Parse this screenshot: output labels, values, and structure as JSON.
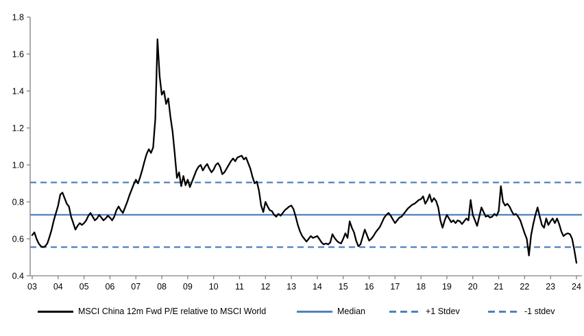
{
  "chart_data": {
    "type": "line",
    "title": "",
    "xlabel": "",
    "ylabel": "",
    "ylim": [
      0.4,
      1.8
    ],
    "y_ticks": [
      0.4,
      0.6,
      0.8,
      1.0,
      1.2,
      1.4,
      1.6,
      1.8
    ],
    "x_tick_labels": [
      "03",
      "04",
      "05",
      "06",
      "07",
      "08",
      "09",
      "10",
      "11",
      "12",
      "13",
      "14",
      "15",
      "16",
      "17",
      "18",
      "19",
      "20",
      "21",
      "22",
      "23",
      "24"
    ],
    "frequency": "monthly",
    "grid": false,
    "legend_position": "bottom",
    "series": [
      {
        "name": "MSCI China 12m Fwd P/E relative to MSCI World",
        "color": "#000000",
        "style": "solid",
        "values": [
          0.62,
          0.635,
          0.6,
          0.575,
          0.56,
          0.555,
          0.56,
          0.575,
          0.61,
          0.65,
          0.7,
          0.74,
          0.78,
          0.84,
          0.85,
          0.82,
          0.79,
          0.775,
          0.72,
          0.685,
          0.65,
          0.67,
          0.685,
          0.675,
          0.685,
          0.7,
          0.725,
          0.74,
          0.72,
          0.7,
          0.71,
          0.73,
          0.715,
          0.7,
          0.71,
          0.725,
          0.715,
          0.7,
          0.72,
          0.755,
          0.775,
          0.755,
          0.74,
          0.77,
          0.8,
          0.835,
          0.865,
          0.895,
          0.92,
          0.9,
          0.935,
          0.975,
          1.02,
          1.06,
          1.085,
          1.065,
          1.095,
          1.25,
          1.68,
          1.48,
          1.38,
          1.4,
          1.33,
          1.36,
          1.26,
          1.18,
          1.06,
          0.93,
          0.96,
          0.885,
          0.94,
          0.89,
          0.92,
          0.88,
          0.91,
          0.94,
          0.97,
          0.99,
          1.0,
          0.97,
          0.99,
          1.005,
          0.98,
          0.96,
          0.975,
          1.0,
          1.01,
          0.99,
          0.95,
          0.96,
          0.98,
          1.0,
          1.02,
          1.035,
          1.02,
          1.04,
          1.045,
          1.05,
          1.03,
          1.04,
          1.01,
          0.98,
          0.935,
          0.9,
          0.91,
          0.86,
          0.78,
          0.745,
          0.8,
          0.775,
          0.755,
          0.75,
          0.73,
          0.72,
          0.735,
          0.725,
          0.74,
          0.755,
          0.765,
          0.775,
          0.78,
          0.76,
          0.72,
          0.675,
          0.64,
          0.615,
          0.6,
          0.585,
          0.6,
          0.615,
          0.605,
          0.61,
          0.615,
          0.598,
          0.58,
          0.57,
          0.575,
          0.57,
          0.58,
          0.625,
          0.605,
          0.59,
          0.58,
          0.575,
          0.6,
          0.63,
          0.605,
          0.695,
          0.66,
          0.635,
          0.59,
          0.56,
          0.57,
          0.61,
          0.65,
          0.62,
          0.59,
          0.6,
          0.615,
          0.635,
          0.65,
          0.665,
          0.69,
          0.715,
          0.73,
          0.74,
          0.725,
          0.705,
          0.685,
          0.7,
          0.715,
          0.72,
          0.735,
          0.75,
          0.765,
          0.775,
          0.785,
          0.79,
          0.8,
          0.81,
          0.815,
          0.83,
          0.79,
          0.81,
          0.84,
          0.8,
          0.82,
          0.805,
          0.77,
          0.7,
          0.66,
          0.7,
          0.73,
          0.71,
          0.69,
          0.7,
          0.685,
          0.7,
          0.695,
          0.68,
          0.695,
          0.71,
          0.7,
          0.81,
          0.73,
          0.7,
          0.67,
          0.72,
          0.77,
          0.745,
          0.72,
          0.725,
          0.715,
          0.72,
          0.735,
          0.725,
          0.75,
          0.885,
          0.8,
          0.78,
          0.79,
          0.775,
          0.75,
          0.73,
          0.735,
          0.72,
          0.7,
          0.665,
          0.63,
          0.6,
          0.51,
          0.62,
          0.68,
          0.73,
          0.77,
          0.72,
          0.675,
          0.66,
          0.71,
          0.675,
          0.695,
          0.71,
          0.685,
          0.71,
          0.68,
          0.64,
          0.615,
          0.625,
          0.63,
          0.625,
          0.6,
          0.54,
          0.47
        ]
      }
    ],
    "reference_lines": [
      {
        "name": "Median",
        "value": 0.73,
        "color": "#4F81BD",
        "style": "solid"
      },
      {
        "name": "+1 Stdev",
        "value": 0.905,
        "color": "#4F81BD",
        "style": "dashed"
      },
      {
        "name": "-1 stdev",
        "value": 0.555,
        "color": "#4F81BD",
        "style": "dashed"
      }
    ]
  },
  "colors": {
    "series_line": "#000000",
    "stat_line_blue": "#4F81BD",
    "axis": "#808080",
    "tick_label": "#000000",
    "background": "#ffffff"
  }
}
